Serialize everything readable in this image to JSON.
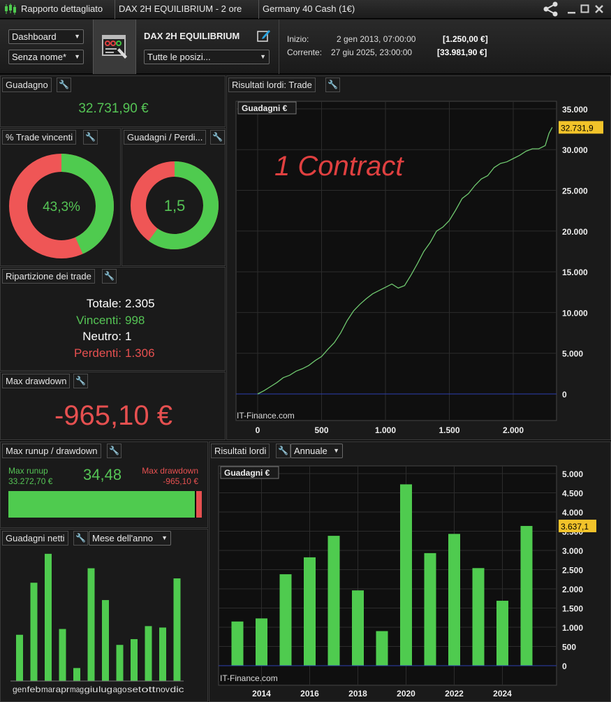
{
  "titlebar": {
    "report_title": "Rapporto dettagliato",
    "strategy_tab": "DAX 2H  EQUILIBRIUM - 2 ore",
    "instrument_tab": "Germany 40 Cash (1€)"
  },
  "header": {
    "view_select": "Dashboard",
    "name_select": "Senza nome*",
    "strategy_name": "DAX 2H  EQUILIBRIUM",
    "positions_select": "Tutte le posizi...",
    "start_label": "Inizio:",
    "start_date": "2 gen 2013, 07:00:00",
    "start_value": "[1.250,00 €]",
    "current_label": "Corrente:",
    "current_date": "27 giu 2025, 23:00:00",
    "current_value": "[33.981,90 €]"
  },
  "gain": {
    "title": "Guadagno",
    "value": "32.731,90 €"
  },
  "win_pct": {
    "title": "% Trade vincenti",
    "value": "43,3%",
    "fraction": 0.433
  },
  "gain_loss": {
    "title": "Guadagni / Perdi...",
    "value": "1,5",
    "fraction": 0.6
  },
  "breakdown": {
    "title": "Ripartizione dei trade",
    "rows": [
      {
        "label": "Totale:",
        "value": "2.305",
        "color": "#ffffff"
      },
      {
        "label": "Vincenti:",
        "value": "998",
        "color": "#55c455"
      },
      {
        "label": "Neutro:",
        "value": "1",
        "color": "#ffffff"
      },
      {
        "label": "Perdenti:",
        "value": "1.306",
        "color": "#e65050"
      }
    ]
  },
  "max_dd": {
    "title": "Max drawdown",
    "value": "-965,10 €"
  },
  "runup": {
    "title": "Max runup / drawdown",
    "runup_label": "Max runup",
    "runup_value": "33.272,70 €",
    "ratio": "34,48",
    "dd_label": "Max drawdown",
    "dd_value": "-965,10 €",
    "runup_fraction": 0.972
  },
  "monthly": {
    "title": "Guadagni netti",
    "select": "Mese dell'anno",
    "chart_data": {
      "type": "bar",
      "categories": [
        "gen",
        "feb",
        "mar",
        "apr",
        "mag",
        "giu",
        "lug",
        "ago",
        "set",
        "ott",
        "nov",
        "dic"
      ],
      "values": [
        0.32,
        0.68,
        0.88,
        0.36,
        0.09,
        0.78,
        0.56,
        0.25,
        0.29,
        0.38,
        0.37,
        0.71
      ]
    }
  },
  "trade_chart": {
    "title": "Risultati lordi: Trade",
    "chart_label": "Guadagni €",
    "annotation": "1 Contract",
    "watermark": "IT-Finance.com",
    "last_value_badge": "32.731,9",
    "colors": {
      "line": "#6fc86f",
      "background": "#0f0f0f",
      "badge": "#f2c32a"
    },
    "chart_data": {
      "type": "line",
      "xlim": [
        0,
        2400
      ],
      "ylim": [
        0,
        35000
      ],
      "x_ticks": [
        {
          "v": 0,
          "label": "0"
        },
        {
          "v": 500,
          "label": "500"
        },
        {
          "v": 1000,
          "label": "1.000"
        },
        {
          "v": 1500,
          "label": "1.500"
        },
        {
          "v": 2000,
          "label": "2.000"
        }
      ],
      "y_ticks": [
        {
          "v": 0,
          "label": "0"
        },
        {
          "v": 5000,
          "label": "5.000"
        },
        {
          "v": 10000,
          "label": "10.000"
        },
        {
          "v": 15000,
          "label": "15.000"
        },
        {
          "v": 20000,
          "label": "20.000"
        },
        {
          "v": 25000,
          "label": "25.000"
        },
        {
          "v": 30000,
          "label": "30.000"
        },
        {
          "v": 35000,
          "label": "35.000"
        }
      ],
      "points": [
        [
          0,
          0
        ],
        [
          50,
          400
        ],
        [
          100,
          900
        ],
        [
          150,
          1400
        ],
        [
          200,
          2000
        ],
        [
          250,
          2300
        ],
        [
          300,
          2800
        ],
        [
          350,
          3100
        ],
        [
          400,
          3500
        ],
        [
          450,
          4100
        ],
        [
          500,
          4600
        ],
        [
          550,
          5500
        ],
        [
          600,
          6300
        ],
        [
          650,
          7500
        ],
        [
          700,
          9000
        ],
        [
          750,
          10200
        ],
        [
          800,
          11000
        ],
        [
          850,
          11700
        ],
        [
          900,
          12300
        ],
        [
          950,
          12700
        ],
        [
          1000,
          13100
        ],
        [
          1050,
          13500
        ],
        [
          1100,
          13000
        ],
        [
          1150,
          13300
        ],
        [
          1200,
          14600
        ],
        [
          1250,
          16000
        ],
        [
          1300,
          17500
        ],
        [
          1350,
          18600
        ],
        [
          1400,
          20000
        ],
        [
          1450,
          20500
        ],
        [
          1500,
          21300
        ],
        [
          1550,
          22600
        ],
        [
          1600,
          24000
        ],
        [
          1650,
          24600
        ],
        [
          1700,
          25600
        ],
        [
          1750,
          26400
        ],
        [
          1800,
          26800
        ],
        [
          1850,
          27800
        ],
        [
          1900,
          28300
        ],
        [
          1950,
          28500
        ],
        [
          2000,
          28900
        ],
        [
          2050,
          29300
        ],
        [
          2100,
          29800
        ],
        [
          2150,
          30100
        ],
        [
          2200,
          30100
        ],
        [
          2250,
          30500
        ],
        [
          2280,
          32000
        ],
        [
          2305,
          32732
        ]
      ]
    }
  },
  "annual_chart": {
    "title": "Risultati lordi",
    "select": "Annuale",
    "chart_label": "Guadagni €",
    "watermark": "IT-Finance.com",
    "last_value_badge": "3.637,1",
    "colors": {
      "bar": "#4fcb4f",
      "background": "#0f0f0f",
      "badge": "#f2c32a"
    },
    "chart_data": {
      "type": "bar",
      "categories": [
        "2013",
        "2014",
        "2015",
        "2016",
        "2017",
        "2018",
        "2019",
        "2020",
        "2021",
        "2022",
        "2023",
        "2024",
        "2025"
      ],
      "values": [
        1150,
        1230,
        2380,
        2820,
        3380,
        1960,
        900,
        4720,
        2930,
        3430,
        2540,
        1690,
        3637.1
      ],
      "ylim": [
        0,
        5000
      ],
      "y_ticks": [
        {
          "v": 0,
          "label": "0"
        },
        {
          "v": 500,
          "label": "500"
        },
        {
          "v": 1000,
          "label": "1.000"
        },
        {
          "v": 1500,
          "label": "1.500"
        },
        {
          "v": 2000,
          "label": "2.000"
        },
        {
          "v": 2500,
          "label": "2.500"
        },
        {
          "v": 3000,
          "label": "3.000"
        },
        {
          "v": 3500,
          "label": "3.500"
        },
        {
          "v": 4000,
          "label": "4.000"
        },
        {
          "v": 4500,
          "label": "4.500"
        },
        {
          "v": 5000,
          "label": "5.000"
        }
      ],
      "x_tick_labels": [
        "2014",
        "2016",
        "2018",
        "2020",
        "2022",
        "2024"
      ]
    }
  }
}
